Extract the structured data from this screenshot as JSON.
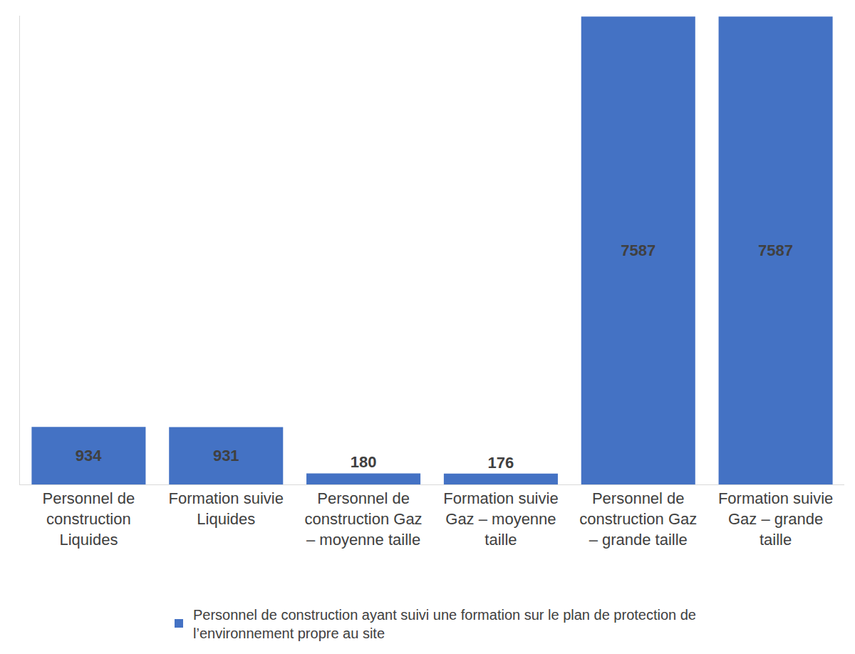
{
  "chart_data": {
    "type": "bar",
    "categories": [
      "Personnel de construction Liquides",
      "Formation suivie Liquides",
      "Personnel de construction Gaz – moyenne taille",
      "Formation suivie Gaz – moyenne taille",
      "Personnel de construction Gaz – grande taille",
      "Formation suivie Gaz – grande taille"
    ],
    "series": [
      {
        "name": "Personnel de construction ayant suivi une formation sur le plan de protection de l’environnement propre au site",
        "color": "#4472c4",
        "values": [
          934,
          931,
          180,
          176,
          7587,
          7587
        ]
      }
    ],
    "ylim": [
      0,
      7600
    ],
    "yticks": [],
    "grid": false,
    "data_labels": true,
    "tick_labels": "x",
    "legend": "bottom"
  }
}
